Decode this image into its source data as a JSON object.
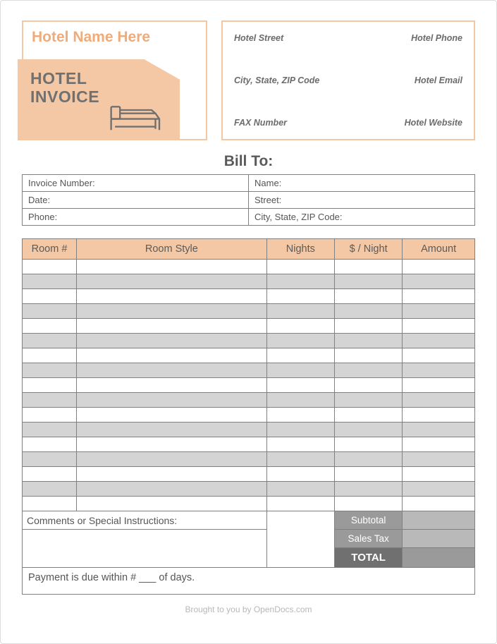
{
  "header": {
    "hotel_name_placeholder": "Hotel Name Here",
    "invoice_badge_line1": "HOTEL",
    "invoice_badge_line2": "INVOICE"
  },
  "contact": {
    "street": "Hotel Street",
    "phone": "Hotel Phone",
    "city_state_zip": "City, State, ZIP Code",
    "email": "Hotel Email",
    "fax": "FAX Number",
    "website": "Hotel Website"
  },
  "bill_to": {
    "title": "Bill To:",
    "invoice_number_label": "Invoice Number:",
    "name_label": "Name:",
    "date_label": "Date:",
    "street_label": "Street:",
    "phone_label": "Phone:",
    "city_state_zip_label": "City, State, ZIP Code:"
  },
  "items_table": {
    "columns": {
      "room_no": "Room #",
      "room_style": "Room Style",
      "nights": "Nights",
      "per_night": "$ / Night",
      "amount": "Amount"
    },
    "col_widths_pct": [
      12,
      42,
      15,
      15,
      16
    ],
    "row_count": 17,
    "header_bg": "#f4c8a4",
    "row_alt_bg": "#d4d4d4",
    "row_bg": "#ffffff",
    "border_color": "#808080"
  },
  "summary": {
    "comments_label": "Comments or Special Instructions:",
    "subtotal_label": "Subtotal",
    "sales_tax_label": "Sales Tax",
    "total_label": "TOTAL",
    "label_bg": "#9a9a9a",
    "total_bg": "#707070",
    "value_bg": "#b9b9b9"
  },
  "payment_terms": "Payment is due within # ___ of days.",
  "footer": "Brought to you by OpenDocs.com",
  "colors": {
    "accent_border": "#f3c7a3",
    "accent_fill": "#f4c8a4",
    "accent_text": "#efab7a",
    "text": "#606060",
    "page_border": "#dcdcdc"
  }
}
